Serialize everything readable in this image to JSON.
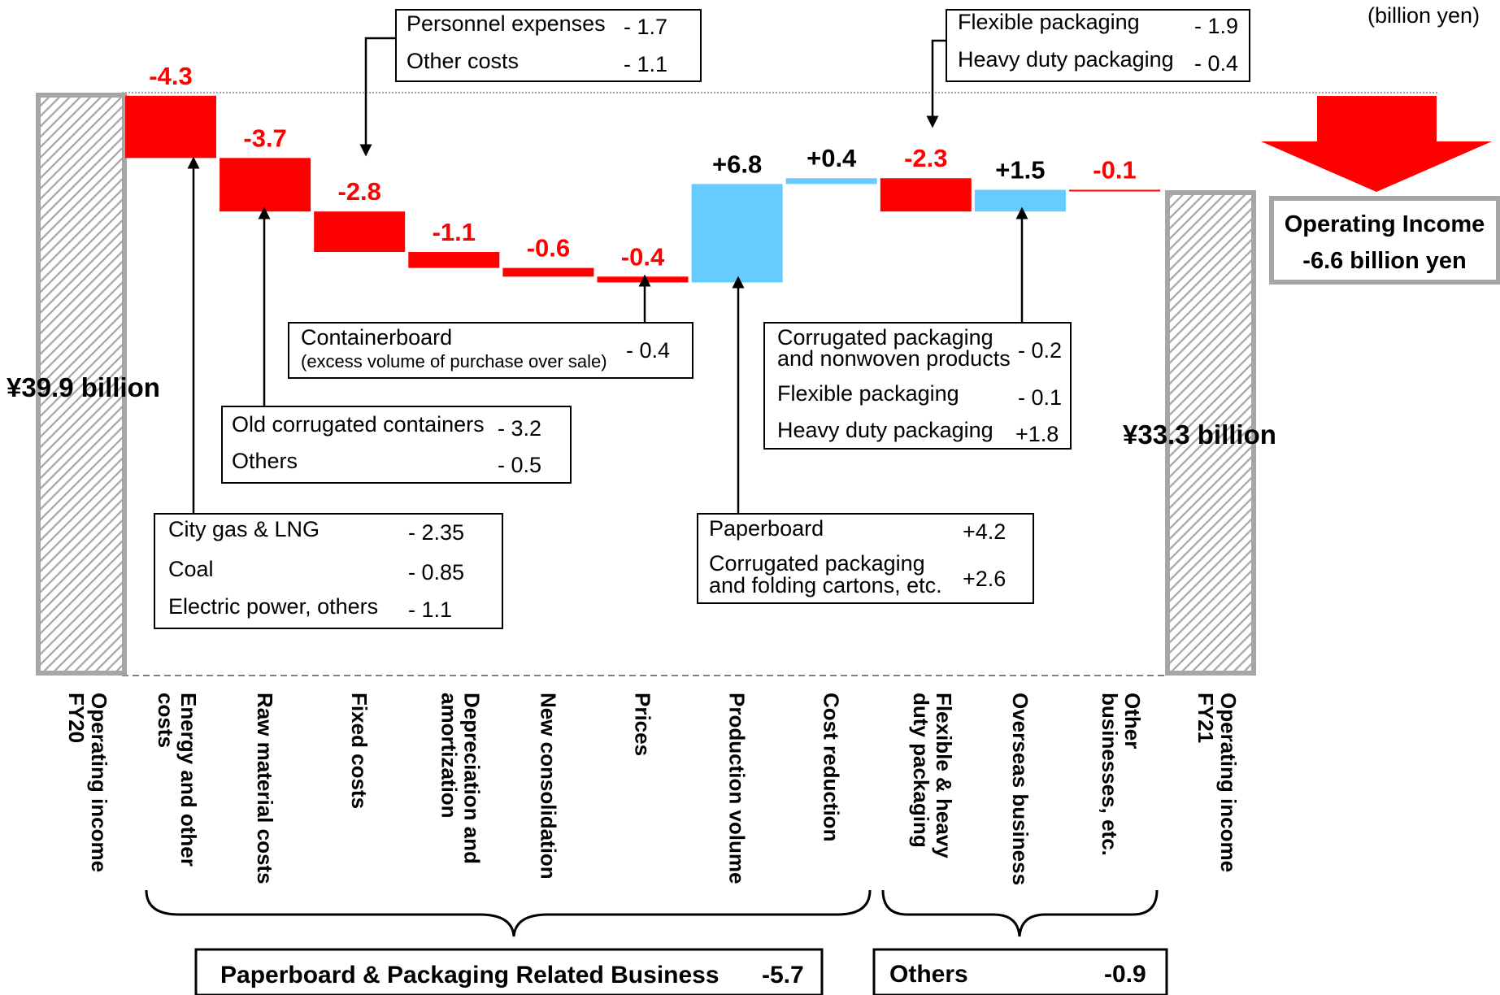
{
  "unit_note": "(billion yen)",
  "colors": {
    "negative": "#ff0000",
    "positive": "#66ccff",
    "total_border": "#a6a6a6",
    "hatch": "#a6a6a6"
  },
  "chart_data": {
    "type": "bar",
    "subtype": "waterfall",
    "y_unit": "billion yen",
    "start": {
      "category": "Operating income FY20",
      "value": 39.9,
      "label": "¥39.9 billion"
    },
    "end": {
      "category": "Operating income FY21",
      "value": 33.3,
      "label": "¥33.3 billion"
    },
    "steps": [
      {
        "category": "Energy and other costs",
        "value": -4.3,
        "label": "-4.3"
      },
      {
        "category": "Raw material costs",
        "value": -3.7,
        "label": "-3.7"
      },
      {
        "category": "Fixed costs",
        "value": -2.8,
        "label": "-2.8"
      },
      {
        "category": "Depreciation and amortization",
        "value": -1.1,
        "label": "-1.1"
      },
      {
        "category": "New consolidation",
        "value": -0.6,
        "label": "-0.6"
      },
      {
        "category": "Prices",
        "value": -0.4,
        "label": "-0.4"
      },
      {
        "category": "Production volume",
        "value": 6.8,
        "label": "+6.8"
      },
      {
        "category": "Cost reduction",
        "value": 0.4,
        "label": "+0.4"
      },
      {
        "category": "Flexible & heavy duty packaging",
        "value": -2.3,
        "label": "-2.3"
      },
      {
        "category": "Overseas business",
        "value": 1.5,
        "label": "+1.5"
      },
      {
        "category": "Other businesses, etc.",
        "value": -0.1,
        "label": "-0.1"
      }
    ],
    "change_summary": {
      "line1": "Operating Income",
      "line2": "-6.6 billion yen",
      "value": -6.6
    },
    "groups": [
      {
        "label": "Paperboard & Packaging Related Business",
        "value": "-5.7"
      },
      {
        "label": "Others",
        "value": "-0.9"
      }
    ]
  },
  "breakdowns": {
    "energy": [
      {
        "item": "City gas & LNG",
        "value": "- 2.35"
      },
      {
        "item": "Coal",
        "value": "- 0.85"
      },
      {
        "item": "Electric power, others",
        "value": "- 1.1"
      }
    ],
    "raw": [
      {
        "item": "Old corrugated containers",
        "value": "- 3.2"
      },
      {
        "item": "Others",
        "value": "- 0.5"
      }
    ],
    "fixed": [
      {
        "item": "Personnel expenses",
        "value": "- 1.7"
      },
      {
        "item": "Other costs",
        "value": "- 1.1"
      }
    ],
    "prices": [
      {
        "item": "Containerboard",
        "note": "(excess volume of purchase over sale)",
        "value": "- 0.4"
      }
    ],
    "production": [
      {
        "item": "Paperboard",
        "value": "+4.2"
      },
      {
        "item": "Corrugated packaging",
        "item2": "and folding cartons, etc.",
        "value": "+2.6"
      }
    ],
    "flexible": [
      {
        "item": "Flexible packaging",
        "value": "- 1.9"
      },
      {
        "item": "Heavy duty packaging",
        "value": "- 0.4"
      }
    ],
    "overseas": [
      {
        "item": "Corrugated packaging",
        "item2": "and nonwoven products",
        "value": "- 0.2"
      },
      {
        "item": "Flexible packaging",
        "value": "- 0.1"
      },
      {
        "item": "Heavy duty packaging",
        "value": "+1.8"
      }
    ]
  }
}
